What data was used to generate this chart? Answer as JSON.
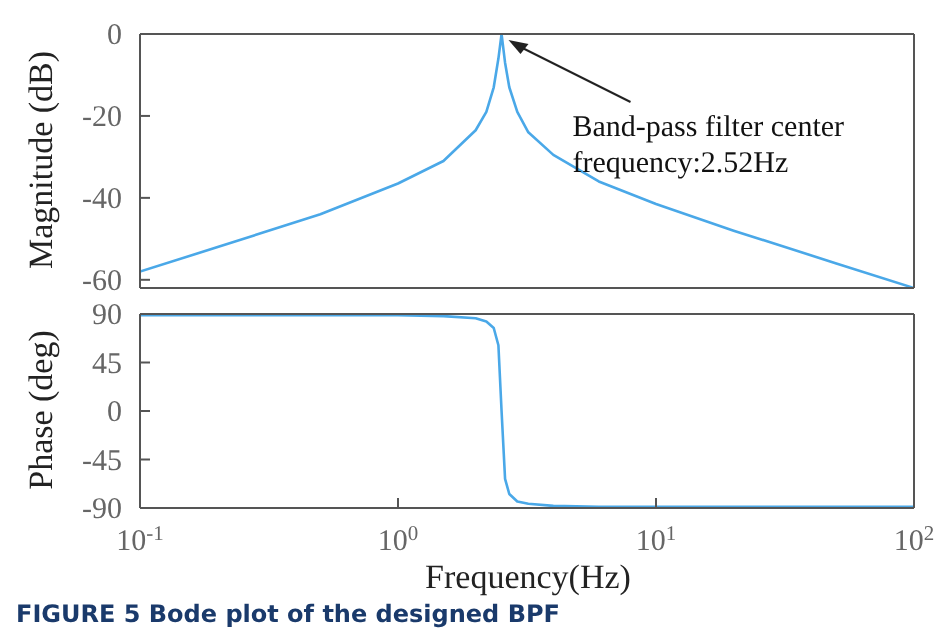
{
  "chart_data": [
    {
      "type": "line",
      "ylabel": "Magnitude (dB)",
      "x": [
        0.1,
        0.2,
        0.5,
        1,
        1.5,
        2,
        2.2,
        2.35,
        2.45,
        2.52,
        2.6,
        2.7,
        2.9,
        3.2,
        4,
        6,
        10,
        20,
        50,
        100
      ],
      "series": [
        {
          "color": "#4aa8e8",
          "values": [
            -58,
            -52,
            -44,
            -36.5,
            -31,
            -23.5,
            -19,
            -13,
            -6,
            0,
            -7,
            -13,
            -19,
            -24,
            -29.5,
            -36,
            -41.5,
            -48,
            -56,
            -62
          ]
        }
      ],
      "log": "x",
      "xlim": [
        0.1,
        100
      ],
      "xticks": [
        {
          "value": 0.1,
          "label": null
        },
        {
          "value": 1,
          "label": null
        },
        {
          "value": 10,
          "label": null
        },
        {
          "value": 100,
          "label": null
        }
      ],
      "ylim": [
        -62,
        0
      ],
      "yticks": [
        -60,
        -40,
        -20,
        0
      ],
      "tick_labels": "y",
      "grid": false,
      "legend": false,
      "annotations": [
        {
          "text": "Band-pass filter center frequency:2.52Hz",
          "x": 2.52,
          "y": 0
        }
      ]
    },
    {
      "type": "line",
      "ylabel": "Phase (deg)",
      "xlabel": "Frequency(Hz)",
      "x": [
        0.1,
        0.2,
        0.5,
        1,
        1.5,
        2,
        2.2,
        2.35,
        2.45,
        2.52,
        2.6,
        2.7,
        2.9,
        3.2,
        4,
        6,
        10,
        20,
        50,
        100
      ],
      "series": [
        {
          "color": "#4aa8e8",
          "values": [
            89,
            89,
            89,
            89,
            88,
            86,
            83,
            77,
            61,
            0,
            -63,
            -77,
            -84,
            -86,
            -88,
            -89,
            -89,
            -89,
            -89,
            -89
          ]
        }
      ],
      "log": "x",
      "xlim": [
        0.1,
        100
      ],
      "xticks": [
        {
          "value": 0.1,
          "label": "10$^{-1}$"
        },
        {
          "value": 1,
          "label": "10$^{0}$"
        },
        {
          "value": 10,
          "label": "10$^{1}$"
        },
        {
          "value": 100,
          "label": "10$^{2}$"
        }
      ],
      "ylim": [
        -90,
        90
      ],
      "yticks": [
        -90,
        -45,
        0,
        45,
        90
      ],
      "grid": false,
      "legend": false,
      "annotations": [
        "FIGURE 5 Bode plot of the designed BPF"
      ]
    }
  ]
}
